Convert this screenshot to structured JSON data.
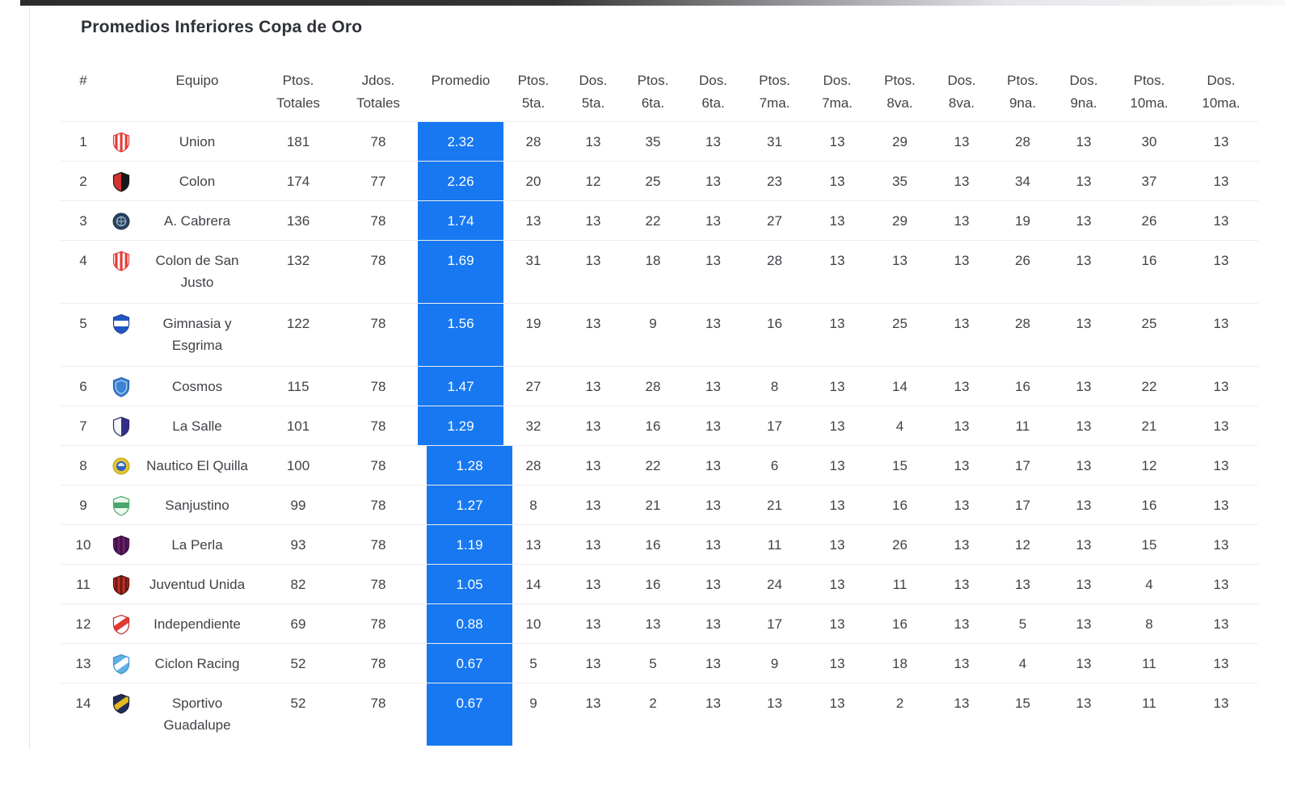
{
  "page": {
    "title": "Promedios Inferiores Copa de Oro"
  },
  "colors": {
    "promedio_bg": "#1778F2",
    "promedio_text": "#ffffff"
  },
  "table": {
    "columns": [
      {
        "id": "rank",
        "line1": "#",
        "line2": ""
      },
      {
        "id": "crest",
        "line1": "",
        "line2": ""
      },
      {
        "id": "equipo",
        "line1": "Equipo",
        "line2": ""
      },
      {
        "id": "ptos-totales",
        "line1": "Ptos.",
        "line2": "Totales"
      },
      {
        "id": "jdos-totales",
        "line1": "Jdos.",
        "line2": "Totales"
      },
      {
        "id": "promedio",
        "line1": "Promedio",
        "line2": ""
      },
      {
        "id": "ptos-5ta",
        "line1": "Ptos.",
        "line2": "5ta."
      },
      {
        "id": "dos-5ta",
        "line1": "Dos.",
        "line2": "5ta."
      },
      {
        "id": "ptos-6ta",
        "line1": "Ptos.",
        "line2": "6ta."
      },
      {
        "id": "dos-6ta",
        "line1": "Dos.",
        "line2": "6ta."
      },
      {
        "id": "ptos-7ma",
        "line1": "Ptos.",
        "line2": "7ma."
      },
      {
        "id": "dos-7ma",
        "line1": "Dos.",
        "line2": "7ma."
      },
      {
        "id": "ptos-8va",
        "line1": "Ptos.",
        "line2": "8va."
      },
      {
        "id": "dos-8va",
        "line1": "Dos.",
        "line2": "8va."
      },
      {
        "id": "ptos-9na",
        "line1": "Ptos.",
        "line2": "9na."
      },
      {
        "id": "dos-9na",
        "line1": "Dos.",
        "line2": "9na."
      },
      {
        "id": "ptos-10ma",
        "line1": "Ptos.",
        "line2": "10ma."
      },
      {
        "id": "dos-10ma",
        "line1": "Dos.",
        "line2": "10ma."
      }
    ],
    "rows": [
      {
        "rank": 1,
        "team": "Union",
        "ptos_totales": 181,
        "jdos_totales": 78,
        "promedio": "2.32",
        "values": [
          28,
          13,
          35,
          13,
          31,
          13,
          29,
          13,
          28,
          13,
          30,
          13
        ],
        "tall": false,
        "promedio_shifted": false,
        "crest": {
          "name": "union-crest-icon",
          "kind": "v-stripes",
          "c1": "#ffffff",
          "c2": "#e23b36",
          "border": "#e23b36"
        }
      },
      {
        "rank": 2,
        "team": "Colon",
        "ptos_totales": 174,
        "jdos_totales": 77,
        "promedio": "2.26",
        "values": [
          20,
          12,
          25,
          13,
          23,
          13,
          35,
          13,
          34,
          13,
          37,
          13
        ],
        "tall": false,
        "promedio_shifted": false,
        "crest": {
          "name": "colon-crest-icon",
          "kind": "v-half",
          "c1": "#d63230",
          "c2": "#181818",
          "border": "#181818"
        }
      },
      {
        "rank": 3,
        "team": "A. Cabrera",
        "ptos_totales": 136,
        "jdos_totales": 78,
        "promedio": "1.74",
        "values": [
          13,
          13,
          22,
          13,
          27,
          13,
          29,
          13,
          19,
          13,
          26,
          13
        ],
        "tall": false,
        "promedio_shifted": false,
        "crest": {
          "name": "a-cabrera-crest-icon",
          "kind": "circle",
          "c1": "#27415f",
          "c2": "#9db2c9",
          "border": "#1d3148"
        }
      },
      {
        "rank": 4,
        "team": "Colon de San Justo",
        "ptos_totales": 132,
        "jdos_totales": 78,
        "promedio": "1.69",
        "values": [
          31,
          13,
          18,
          13,
          28,
          13,
          13,
          13,
          26,
          13,
          16,
          13
        ],
        "tall": true,
        "promedio_shifted": false,
        "crest": {
          "name": "colon-san-justo-crest-icon",
          "kind": "v-stripes",
          "c1": "#ffffff",
          "c2": "#e23b36",
          "border": "#e23b36"
        }
      },
      {
        "rank": 5,
        "team": "Gimnasia y Esgrima",
        "ptos_totales": 122,
        "jdos_totales": 78,
        "promedio": "1.56",
        "values": [
          19,
          13,
          9,
          13,
          16,
          13,
          25,
          13,
          28,
          13,
          25,
          13
        ],
        "tall": true,
        "promedio_shifted": false,
        "crest": {
          "name": "gimnasia-crest-icon",
          "kind": "h-band",
          "c1": "#2356c5",
          "c2": "#ffffff",
          "border": "#1d4098"
        }
      },
      {
        "rank": 6,
        "team": "Cosmos",
        "ptos_totales": 115,
        "jdos_totales": 78,
        "promedio": "1.47",
        "values": [
          27,
          13,
          28,
          13,
          8,
          13,
          14,
          13,
          16,
          13,
          22,
          13
        ],
        "tall": false,
        "promedio_shifted": false,
        "crest": {
          "name": "cosmos-crest-icon",
          "kind": "plain",
          "c1": "#3b82d6",
          "c2": "#a9cdf0",
          "border": "#2b62a8"
        }
      },
      {
        "rank": 7,
        "team": "La Salle",
        "ptos_totales": 101,
        "jdos_totales": 78,
        "promedio": "1.29",
        "values": [
          32,
          13,
          16,
          13,
          17,
          13,
          4,
          13,
          11,
          13,
          21,
          13
        ],
        "tall": false,
        "promedio_shifted": false,
        "crest": {
          "name": "la-salle-crest-icon",
          "kind": "v-half",
          "c1": "#f4f4fa",
          "c2": "#31308a",
          "border": "#2a2a6a"
        }
      },
      {
        "rank": 8,
        "team": "Nautico El Quilla",
        "ptos_totales": 100,
        "jdos_totales": 78,
        "promedio": "1.28",
        "values": [
          28,
          13,
          22,
          13,
          6,
          13,
          15,
          13,
          17,
          13,
          12,
          13
        ],
        "tall": false,
        "promedio_shifted": true,
        "crest": {
          "name": "nautico-el-quilla-crest-icon",
          "kind": "circle-ring",
          "c1": "#e3c52f",
          "c2": "#2f63c1",
          "border": "#b9a21a"
        }
      },
      {
        "rank": 9,
        "team": "Sanjustino",
        "ptos_totales": 99,
        "jdos_totales": 78,
        "promedio": "1.27",
        "values": [
          8,
          13,
          21,
          13,
          21,
          13,
          16,
          13,
          17,
          13,
          16,
          13
        ],
        "tall": false,
        "promedio_shifted": true,
        "crest": {
          "name": "sanjustino-crest-icon",
          "kind": "h-band",
          "c1": "#eef7f0",
          "c2": "#49a869",
          "border": "#49a869"
        }
      },
      {
        "rank": 10,
        "team": "La Perla",
        "ptos_totales": 93,
        "jdos_totales": 78,
        "promedio": "1.19",
        "values": [
          13,
          13,
          16,
          13,
          11,
          13,
          26,
          13,
          12,
          13,
          15,
          13
        ],
        "tall": false,
        "promedio_shifted": true,
        "crest": {
          "name": "la-perla-crest-icon",
          "kind": "v-stripes",
          "c1": "#6e2262",
          "c2": "#401050",
          "border": "#351043"
        }
      },
      {
        "rank": 11,
        "team": "Juventud Unida",
        "ptos_totales": 82,
        "jdos_totales": 78,
        "promedio": "1.05",
        "values": [
          14,
          13,
          16,
          13,
          24,
          13,
          11,
          13,
          13,
          13,
          4,
          13
        ],
        "tall": false,
        "promedio_shifted": true,
        "crest": {
          "name": "juventud-unida-crest-icon",
          "kind": "v-stripes",
          "c1": "#c03028",
          "c2": "#6d1a14",
          "border": "#501008"
        }
      },
      {
        "rank": 12,
        "team": "Independiente",
        "ptos_totales": 69,
        "jdos_totales": 78,
        "promedio": "0.88",
        "values": [
          10,
          13,
          13,
          13,
          17,
          13,
          16,
          13,
          5,
          13,
          8,
          13
        ],
        "tall": false,
        "promedio_shifted": true,
        "crest": {
          "name": "independiente-crest-icon",
          "kind": "diag-band",
          "c1": "#ffffff",
          "c2": "#e23b36",
          "border": "#c52f2a"
        }
      },
      {
        "rank": 13,
        "team": "Ciclon Racing",
        "ptos_totales": 52,
        "jdos_totales": 78,
        "promedio": "0.67",
        "values": [
          5,
          13,
          5,
          13,
          9,
          13,
          18,
          13,
          4,
          13,
          11,
          13
        ],
        "tall": false,
        "promedio_shifted": true,
        "crest": {
          "name": "ciclon-racing-crest-icon",
          "kind": "diag-band",
          "c1": "#5fb1e8",
          "c2": "#ffffff",
          "border": "#3f8fc9"
        }
      },
      {
        "rank": 14,
        "team": "Sportivo Guadalupe",
        "ptos_totales": 52,
        "jdos_totales": 78,
        "promedio": "0.67",
        "values": [
          9,
          13,
          2,
          13,
          13,
          13,
          2,
          13,
          15,
          13,
          11,
          13
        ],
        "tall": true,
        "promedio_shifted": true,
        "crest": {
          "name": "sportivo-guadalupe-crest-icon",
          "kind": "diag-band",
          "c1": "#222c58",
          "c2": "#e5b822",
          "border": "#1a2142"
        }
      }
    ]
  }
}
